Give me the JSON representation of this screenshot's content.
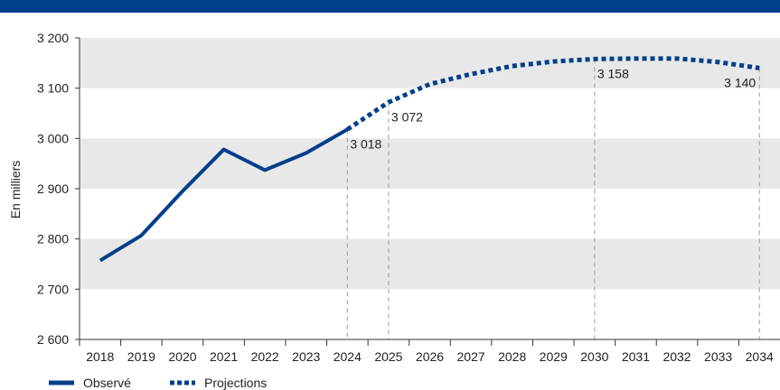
{
  "colors": {
    "accent": "#003f8a",
    "band": "#e8e8e8",
    "guide": "#9a9a9a"
  },
  "chart_data": {
    "type": "line",
    "ylabel": "En milliers",
    "ylim": [
      2600,
      3200
    ],
    "yticks": [
      2600,
      2700,
      2800,
      2900,
      3000,
      3100,
      3200
    ],
    "ytick_labels": [
      "2 600",
      "2 700",
      "2 800",
      "2 900",
      "3 000",
      "3 100",
      "3 200"
    ],
    "grid": "alternating horizontal bands",
    "legend_position": "bottom-left",
    "x_categories": [
      "2018",
      "2019",
      "2020",
      "2021",
      "2022",
      "2023",
      "2024",
      "2025",
      "2026",
      "2027",
      "2028",
      "2029",
      "2030",
      "2031",
      "2032",
      "2033",
      "2034"
    ],
    "series": [
      {
        "name": "Observé",
        "style": "solid",
        "x": [
          "2018",
          "2019",
          "2020",
          "2021",
          "2022",
          "2023",
          "2024"
        ],
        "values": [
          2757,
          2807,
          2895,
          2978,
          2937,
          2971,
          3018
        ]
      },
      {
        "name": "Projections",
        "style": "dotted",
        "x": [
          "2024",
          "2025",
          "2026",
          "2027",
          "2028",
          "2029",
          "2030",
          "2031",
          "2032",
          "2033",
          "2034"
        ],
        "values": [
          3018,
          3072,
          3108,
          3128,
          3144,
          3153,
          3158,
          3159,
          3159,
          3152,
          3140
        ]
      }
    ],
    "annotations": [
      {
        "x": "2024",
        "value": 3018,
        "label": "3 018"
      },
      {
        "x": "2025",
        "value": 3072,
        "label": "3 072"
      },
      {
        "x": "2030",
        "value": 3158,
        "label": "3 158"
      },
      {
        "x": "2034",
        "value": 3140,
        "label": "3 140"
      }
    ]
  }
}
